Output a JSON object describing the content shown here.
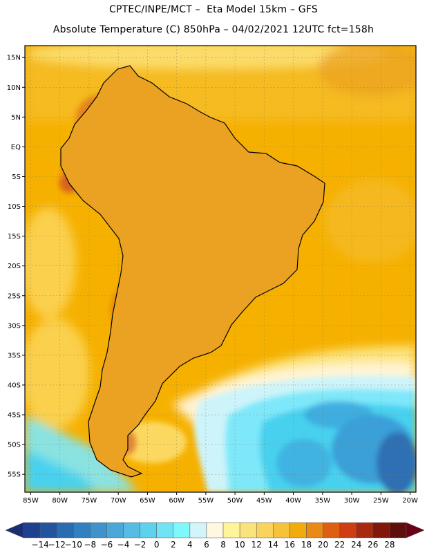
{
  "header": {
    "line1": "CPTEC/INPE/MCT –  Eta Model 15km – GFS",
    "line2": "Absolute Temperature (C) 850hPa – 04/02/2021 12UTC fct=158h"
  },
  "map": {
    "lon_range": [
      -86,
      -19
    ],
    "lat_range": [
      -58,
      17
    ],
    "lat_ticks": [
      {
        "value": 15,
        "label": "15N"
      },
      {
        "value": 10,
        "label": "10N"
      },
      {
        "value": 5,
        "label": "5N"
      },
      {
        "value": 0,
        "label": "EQ"
      },
      {
        "value": -5,
        "label": "5S"
      },
      {
        "value": -10,
        "label": "10S"
      },
      {
        "value": -15,
        "label": "15S"
      },
      {
        "value": -20,
        "label": "20S"
      },
      {
        "value": -25,
        "label": "25S"
      },
      {
        "value": -30,
        "label": "30S"
      },
      {
        "value": -35,
        "label": "35S"
      },
      {
        "value": -40,
        "label": "40S"
      },
      {
        "value": -45,
        "label": "45S"
      },
      {
        "value": -50,
        "label": "50S"
      },
      {
        "value": -55,
        "label": "55S"
      }
    ],
    "lon_ticks": [
      {
        "value": -85,
        "label": "85W"
      },
      {
        "value": -80,
        "label": "80W"
      },
      {
        "value": -75,
        "label": "75W"
      },
      {
        "value": -70,
        "label": "70W"
      },
      {
        "value": -65,
        "label": "65W"
      },
      {
        "value": -60,
        "label": "60W"
      },
      {
        "value": -55,
        "label": "55W"
      },
      {
        "value": -50,
        "label": "50W"
      },
      {
        "value": -45,
        "label": "45W"
      },
      {
        "value": -40,
        "label": "40W"
      },
      {
        "value": -35,
        "label": "35W"
      },
      {
        "value": -30,
        "label": "30W"
      },
      {
        "value": -25,
        "label": "25W"
      },
      {
        "value": -20,
        "label": "20W"
      }
    ],
    "colors": {
      "ocean_base": "#f6b100",
      "warm_belt": "#f4c23c",
      "pale_belt": "#fde98a",
      "cream": "#fff6dc",
      "light_cyan": "#cdf4fa",
      "cyan": "#7ee8fa",
      "aqua": "#46d1ef",
      "blue_mid": "#3a9fd8",
      "blue_dark": "#2e6fb3",
      "land_warm": "#eba122",
      "land_hot": "#e07a18",
      "land_hotter": "#d6621a",
      "border": "#000000"
    }
  },
  "colorbar": {
    "levels": [
      "−14",
      "−12",
      "−10",
      "−8",
      "−6",
      "−4",
      "−2",
      "0",
      "2",
      "4",
      "6",
      "8",
      "10",
      "12",
      "14",
      "16",
      "18",
      "20",
      "22",
      "24",
      "26",
      "28"
    ],
    "colors": [
      "#1f3f8f",
      "#23559f",
      "#2a6cb1",
      "#3180c0",
      "#3e93cc",
      "#4aa7d8",
      "#56bce3",
      "#5dd2ed",
      "#6fe4f3",
      "#7ef8fb",
      "#d1f5fb",
      "#fff8e1",
      "#fef59a",
      "#fbe37b",
      "#f8d45c",
      "#f5c23a",
      "#f2ab0c",
      "#e98a16",
      "#de5f12",
      "#cf3d12",
      "#a9290f",
      "#80180d",
      "#5e0f0c"
    ],
    "under_color": "#1a2f72",
    "over_color": "#6a0015"
  }
}
